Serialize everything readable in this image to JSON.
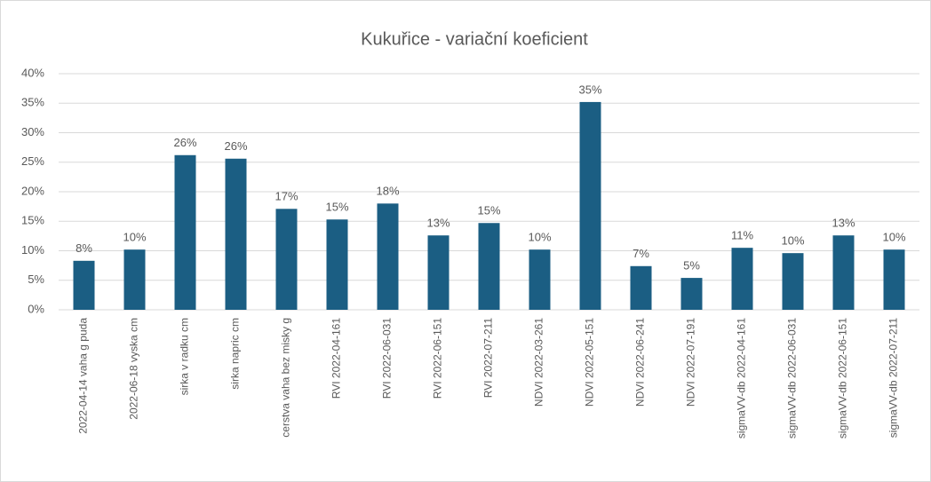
{
  "chart_data": {
    "type": "bar",
    "title": "Kukuřice - variační koeficient",
    "categories": [
      "2022-04-14 vaha g puda",
      "2022-06-18 vyska cm",
      "sirka v radku cm",
      "sirka napric cm",
      "cerstva vaha bez misky g",
      "RVI 2022-04-161",
      "RVI 2022-06-031",
      "RVI 2022-06-151",
      "RVI 2022-07-211",
      "NDVI 2022-03-261",
      "NDVI 2022-05-151",
      "NDVI 2022-06-241",
      "NDVI 2022-07-191",
      "sigmaVV-db 2022-04-161",
      "sigmaVV-db 2022-06-031",
      "sigmaVV-db 2022-06-151",
      "sigmaVV-db 2022-07-211"
    ],
    "values": [
      8.3,
      10.2,
      26.2,
      25.6,
      17.1,
      15.3,
      18.0,
      12.6,
      14.7,
      10.2,
      35.2,
      7.4,
      5.4,
      10.5,
      9.6,
      12.6,
      10.2
    ],
    "value_labels": [
      "8%",
      "10%",
      "26%",
      "26%",
      "17%",
      "15%",
      "18%",
      "13%",
      "15%",
      "10%",
      "35%",
      "7%",
      "5%",
      "11%",
      "10%",
      "13%",
      "10%"
    ],
    "color": "#1b5e83",
    "ylim": [
      0,
      40
    ],
    "yticks": [
      {
        "value": 0,
        "label": "0%"
      },
      {
        "value": 5,
        "label": "5%"
      },
      {
        "value": 10,
        "label": "10%"
      },
      {
        "value": 15,
        "label": "15%"
      },
      {
        "value": 20,
        "label": "20%"
      },
      {
        "value": 25,
        "label": "25%"
      },
      {
        "value": 30,
        "label": "30%"
      },
      {
        "value": 35,
        "label": "35%"
      },
      {
        "value": 40,
        "label": "40%"
      }
    ],
    "grid": true
  }
}
